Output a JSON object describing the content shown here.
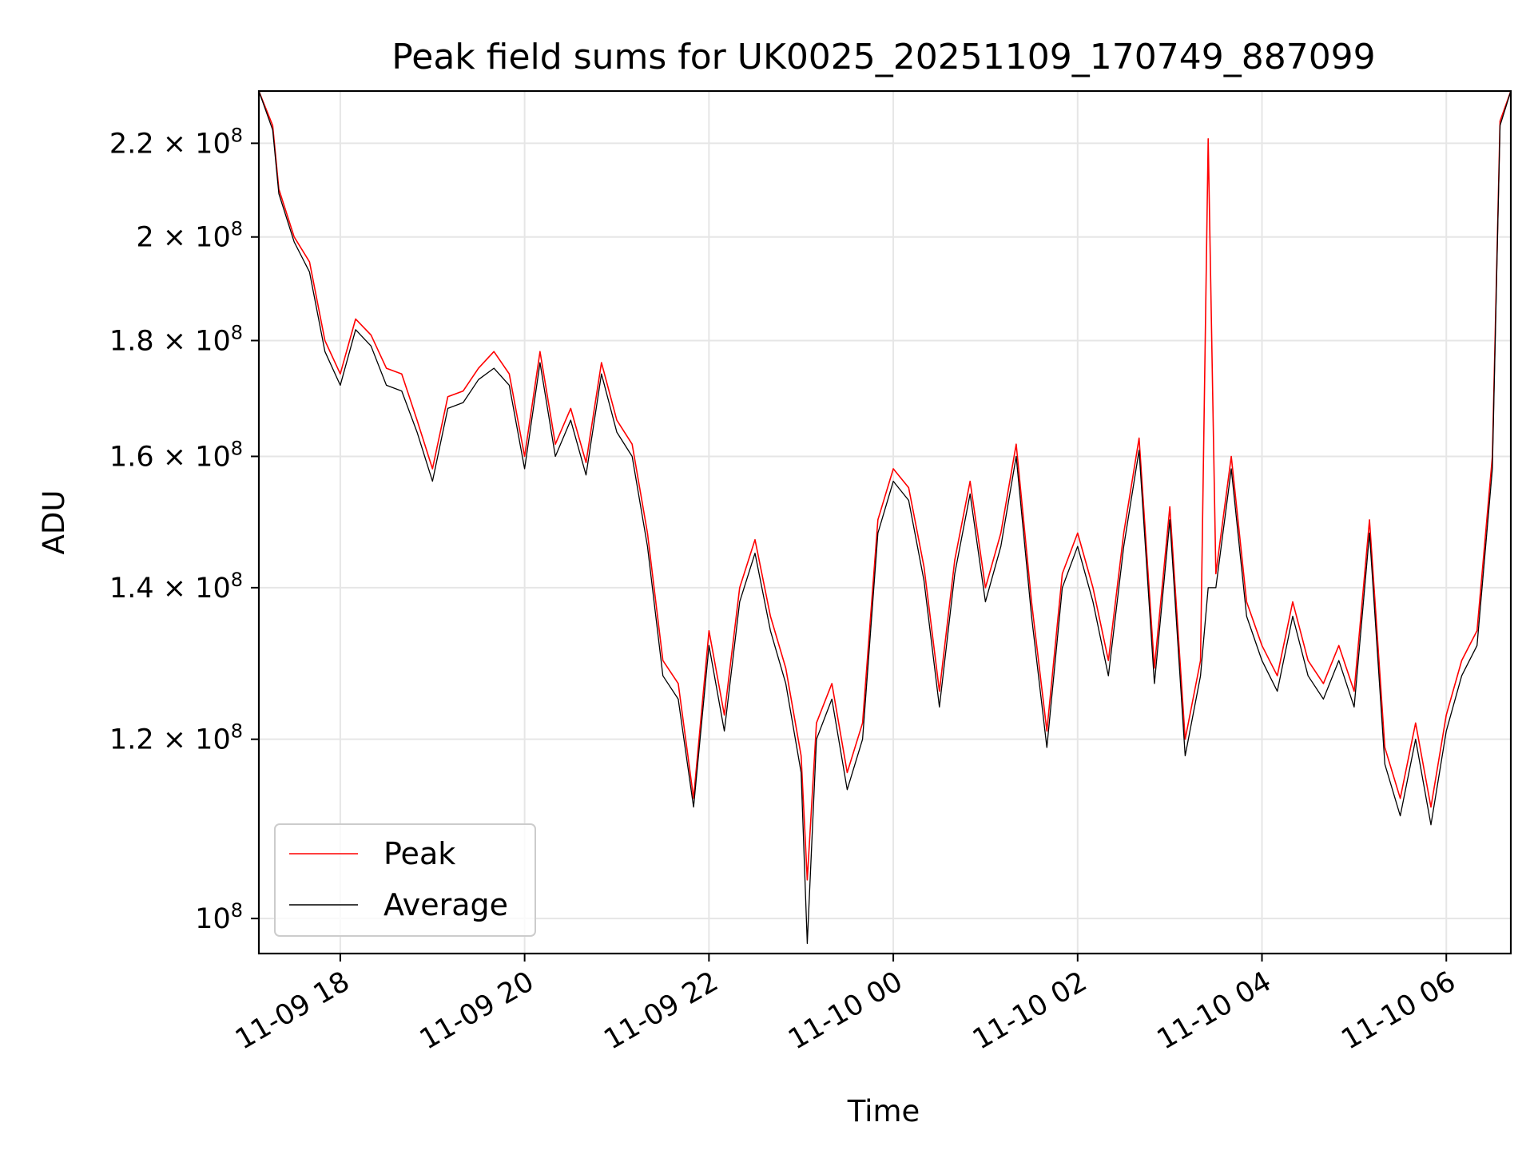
{
  "chart_data": {
    "type": "line",
    "title": "Peak field sums for UK0025_20251109_170749_887099",
    "xlabel": "Time",
    "ylabel": "ADU",
    "yscale": "log",
    "ylim": [
      96500000,
      232000000
    ],
    "xlim": [
      "2025-11-09 17:07",
      "2025-11-10 06:42"
    ],
    "grid": true,
    "legend_position": "lower-left",
    "x_ticks": [
      {
        "value": "2025-11-09 18:00",
        "label": "11-09 18"
      },
      {
        "value": "2025-11-09 20:00",
        "label": "11-09 20"
      },
      {
        "value": "2025-11-09 22:00",
        "label": "11-09 22"
      },
      {
        "value": "2025-11-10 00:00",
        "label": "11-10 00"
      },
      {
        "value": "2025-11-10 02:00",
        "label": "11-10 02"
      },
      {
        "value": "2025-11-10 04:00",
        "label": "11-10 04"
      },
      {
        "value": "2025-11-10 06:00",
        "label": "11-10 06"
      }
    ],
    "y_ticks": [
      {
        "value": 100000000,
        "mantissa": "",
        "exponent": "8"
      },
      {
        "value": 120000000,
        "mantissa": "1.2 × ",
        "exponent": "8"
      },
      {
        "value": 140000000,
        "mantissa": "1.4 × ",
        "exponent": "8"
      },
      {
        "value": 160000000,
        "mantissa": "1.6 × ",
        "exponent": "8"
      },
      {
        "value": 180000000,
        "mantissa": "1.8 × ",
        "exponent": "8"
      },
      {
        "value": 200000000,
        "mantissa": "2 × ",
        "exponent": "8"
      },
      {
        "value": 220000000,
        "mantissa": "2.2 × ",
        "exponent": "8"
      }
    ],
    "y_tick_base": "10",
    "series": [
      {
        "name": "Peak",
        "color": "#ff0000",
        "x": [
          "2025-11-09 17:07",
          "2025-11-09 17:16",
          "2025-11-09 17:20",
          "2025-11-09 17:30",
          "2025-11-09 17:40",
          "2025-11-09 17:50",
          "2025-11-09 18:00",
          "2025-11-09 18:10",
          "2025-11-09 18:20",
          "2025-11-09 18:30",
          "2025-11-09 18:40",
          "2025-11-09 18:50",
          "2025-11-09 19:00",
          "2025-11-09 19:10",
          "2025-11-09 19:20",
          "2025-11-09 19:30",
          "2025-11-09 19:40",
          "2025-11-09 19:50",
          "2025-11-09 20:00",
          "2025-11-09 20:10",
          "2025-11-09 20:20",
          "2025-11-09 20:30",
          "2025-11-09 20:40",
          "2025-11-09 20:50",
          "2025-11-09 21:00",
          "2025-11-09 21:10",
          "2025-11-09 21:20",
          "2025-11-09 21:30",
          "2025-11-09 21:40",
          "2025-11-09 21:50",
          "2025-11-09 22:00",
          "2025-11-09 22:10",
          "2025-11-09 22:20",
          "2025-11-09 22:30",
          "2025-11-09 22:40",
          "2025-11-09 22:50",
          "2025-11-09 23:00",
          "2025-11-09 23:04",
          "2025-11-09 23:10",
          "2025-11-09 23:20",
          "2025-11-09 23:30",
          "2025-11-09 23:40",
          "2025-11-09 23:50",
          "2025-11-10 00:00",
          "2025-11-10 00:10",
          "2025-11-10 00:20",
          "2025-11-10 00:30",
          "2025-11-10 00:40",
          "2025-11-10 00:50",
          "2025-11-10 01:00",
          "2025-11-10 01:10",
          "2025-11-10 01:20",
          "2025-11-10 01:30",
          "2025-11-10 01:40",
          "2025-11-10 01:50",
          "2025-11-10 02:00",
          "2025-11-10 02:10",
          "2025-11-10 02:20",
          "2025-11-10 02:30",
          "2025-11-10 02:40",
          "2025-11-10 02:50",
          "2025-11-10 03:00",
          "2025-11-10 03:10",
          "2025-11-10 03:20",
          "2025-11-10 03:25",
          "2025-11-10 03:30",
          "2025-11-10 03:40",
          "2025-11-10 03:50",
          "2025-11-10 04:00",
          "2025-11-10 04:10",
          "2025-11-10 04:20",
          "2025-11-10 04:30",
          "2025-11-10 04:40",
          "2025-11-10 04:50",
          "2025-11-10 05:00",
          "2025-11-10 05:10",
          "2025-11-10 05:20",
          "2025-11-10 05:30",
          "2025-11-10 05:40",
          "2025-11-10 05:50",
          "2025-11-10 06:00",
          "2025-11-10 06:10",
          "2025-11-10 06:20",
          "2025-11-10 06:30",
          "2025-11-10 06:35",
          "2025-11-10 06:42"
        ],
        "y": [
          232000000,
          224000000,
          210000000,
          200000000,
          195000000,
          180000000,
          174000000,
          184000000,
          181000000,
          175000000,
          174000000,
          166000000,
          158000000,
          170000000,
          171000000,
          175000000,
          178000000,
          174000000,
          160000000,
          178000000,
          162000000,
          168000000,
          159000000,
          176000000,
          166000000,
          162000000,
          148000000,
          130000000,
          127000000,
          113000000,
          134000000,
          123000000,
          140000000,
          147000000,
          136000000,
          129000000,
          118000000,
          104000000,
          122000000,
          127000000,
          116000000,
          122000000,
          150000000,
          158000000,
          155000000,
          143000000,
          126000000,
          144000000,
          156000000,
          140000000,
          148000000,
          162000000,
          138000000,
          121000000,
          142000000,
          148000000,
          140000000,
          130000000,
          148000000,
          163000000,
          129000000,
          152000000,
          120000000,
          130000000,
          221000000,
          142000000,
          160000000,
          138000000,
          132000000,
          128000000,
          138000000,
          130000000,
          127000000,
          132000000,
          126000000,
          150000000,
          119000000,
          113000000,
          122000000,
          112000000,
          123000000,
          130000000,
          134000000,
          160000000,
          225000000,
          232000000
        ]
      },
      {
        "name": "Average",
        "color": "#000000",
        "x": [
          "2025-11-09 17:07",
          "2025-11-09 17:16",
          "2025-11-09 17:20",
          "2025-11-09 17:30",
          "2025-11-09 17:40",
          "2025-11-09 17:50",
          "2025-11-09 18:00",
          "2025-11-09 18:10",
          "2025-11-09 18:20",
          "2025-11-09 18:30",
          "2025-11-09 18:40",
          "2025-11-09 18:50",
          "2025-11-09 19:00",
          "2025-11-09 19:10",
          "2025-11-09 19:20",
          "2025-11-09 19:30",
          "2025-11-09 19:40",
          "2025-11-09 19:50",
          "2025-11-09 20:00",
          "2025-11-09 20:10",
          "2025-11-09 20:20",
          "2025-11-09 20:30",
          "2025-11-09 20:40",
          "2025-11-09 20:50",
          "2025-11-09 21:00",
          "2025-11-09 21:10",
          "2025-11-09 21:20",
          "2025-11-09 21:30",
          "2025-11-09 21:40",
          "2025-11-09 21:50",
          "2025-11-09 22:00",
          "2025-11-09 22:10",
          "2025-11-09 22:20",
          "2025-11-09 22:30",
          "2025-11-09 22:40",
          "2025-11-09 22:50",
          "2025-11-09 23:00",
          "2025-11-09 23:04",
          "2025-11-09 23:10",
          "2025-11-09 23:20",
          "2025-11-09 23:30",
          "2025-11-09 23:40",
          "2025-11-09 23:50",
          "2025-11-10 00:00",
          "2025-11-10 00:10",
          "2025-11-10 00:20",
          "2025-11-10 00:30",
          "2025-11-10 00:40",
          "2025-11-10 00:50",
          "2025-11-10 01:00",
          "2025-11-10 01:10",
          "2025-11-10 01:20",
          "2025-11-10 01:30",
          "2025-11-10 01:40",
          "2025-11-10 01:50",
          "2025-11-10 02:00",
          "2025-11-10 02:10",
          "2025-11-10 02:20",
          "2025-11-10 02:30",
          "2025-11-10 02:40",
          "2025-11-10 02:50",
          "2025-11-10 03:00",
          "2025-11-10 03:10",
          "2025-11-10 03:20",
          "2025-11-10 03:25",
          "2025-11-10 03:30",
          "2025-11-10 03:40",
          "2025-11-10 03:50",
          "2025-11-10 04:00",
          "2025-11-10 04:10",
          "2025-11-10 04:20",
          "2025-11-10 04:30",
          "2025-11-10 04:40",
          "2025-11-10 04:50",
          "2025-11-10 05:00",
          "2025-11-10 05:10",
          "2025-11-10 05:20",
          "2025-11-10 05:30",
          "2025-11-10 05:40",
          "2025-11-10 05:50",
          "2025-11-10 06:00",
          "2025-11-10 06:10",
          "2025-11-10 06:20",
          "2025-11-10 06:30",
          "2025-11-10 06:35",
          "2025-11-10 06:42"
        ],
        "y": [
          232000000,
          223000000,
          209000000,
          199000000,
          193000000,
          178000000,
          172000000,
          182000000,
          179000000,
          172000000,
          171000000,
          164000000,
          156000000,
          168000000,
          169000000,
          173000000,
          175000000,
          172000000,
          158000000,
          176000000,
          160000000,
          166000000,
          157000000,
          174000000,
          164000000,
          160000000,
          146000000,
          128000000,
          125000000,
          112000000,
          132000000,
          121000000,
          138000000,
          145000000,
          134000000,
          127000000,
          116000000,
          97500000,
          120000000,
          125000000,
          114000000,
          120000000,
          148000000,
          156000000,
          153000000,
          141000000,
          124000000,
          142000000,
          154000000,
          138000000,
          146000000,
          160000000,
          136000000,
          119000000,
          140000000,
          146000000,
          138000000,
          128000000,
          146000000,
          161000000,
          127000000,
          150000000,
          118000000,
          128000000,
          140000000,
          140000000,
          158000000,
          136000000,
          130000000,
          126000000,
          136000000,
          128000000,
          125000000,
          130000000,
          124000000,
          148000000,
          117000000,
          111000000,
          120000000,
          110000000,
          121000000,
          128000000,
          132000000,
          158000000,
          224000000,
          232000000
        ]
      }
    ]
  }
}
